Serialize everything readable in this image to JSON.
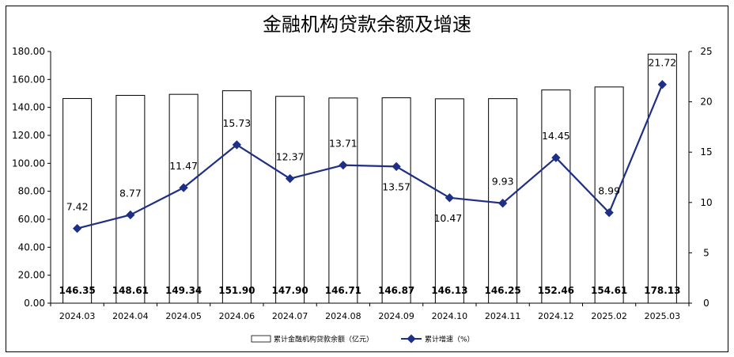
{
  "chart_data": {
    "type": "bar",
    "title": "金融机构贷款余额及增速",
    "categories": [
      "2024.03",
      "2024.04",
      "2024.05",
      "2024.06",
      "2024.07",
      "2024.08",
      "2024.09",
      "2024.10",
      "2024.11",
      "2024.12",
      "2025.02",
      "2025.03"
    ],
    "series": [
      {
        "name": "累计金融机构贷款余额（亿元）",
        "type": "bar",
        "axis": "left",
        "values": [
          146.35,
          148.61,
          149.34,
          151.9,
          147.9,
          146.71,
          146.87,
          146.13,
          146.25,
          152.46,
          154.61,
          178.13
        ],
        "labels": [
          "146.35",
          "148.61",
          "149.34",
          "151.90",
          "147.90",
          "146.71",
          "146.87",
          "146.13",
          "146.25",
          "152.46",
          "154.61",
          "178.13"
        ]
      },
      {
        "name": "累计增速（%）",
        "type": "line",
        "axis": "right",
        "values": [
          7.42,
          8.77,
          11.47,
          15.73,
          12.37,
          13.71,
          13.57,
          10.47,
          9.93,
          14.45,
          8.99,
          21.72
        ],
        "labels": [
          "7.42",
          "8.77",
          "11.47",
          "15.73",
          "12.37",
          "13.71",
          "13.57",
          "10.47",
          "9.93",
          "14.45",
          "8.99",
          "21.72"
        ]
      }
    ],
    "y_left": {
      "lim": [
        0,
        180
      ],
      "ticks": [
        0,
        20,
        40,
        60,
        80,
        100,
        120,
        140,
        160,
        180
      ],
      "tick_labels": [
        "0.00",
        "20.00",
        "40.00",
        "60.00",
        "80.00",
        "100.00",
        "120.00",
        "140.00",
        "160.00",
        "180.00"
      ]
    },
    "y_right": {
      "lim": [
        0,
        25
      ],
      "ticks": [
        0,
        5,
        10,
        15,
        20,
        25
      ],
      "tick_labels": [
        "0",
        "5",
        "10",
        "15",
        "20",
        "25"
      ]
    },
    "grid": false,
    "legend_position": "bottom-center",
    "colors": {
      "line": "#1f2f86",
      "bar_fill": "#ffffff",
      "bar_stroke": "#000000"
    }
  }
}
